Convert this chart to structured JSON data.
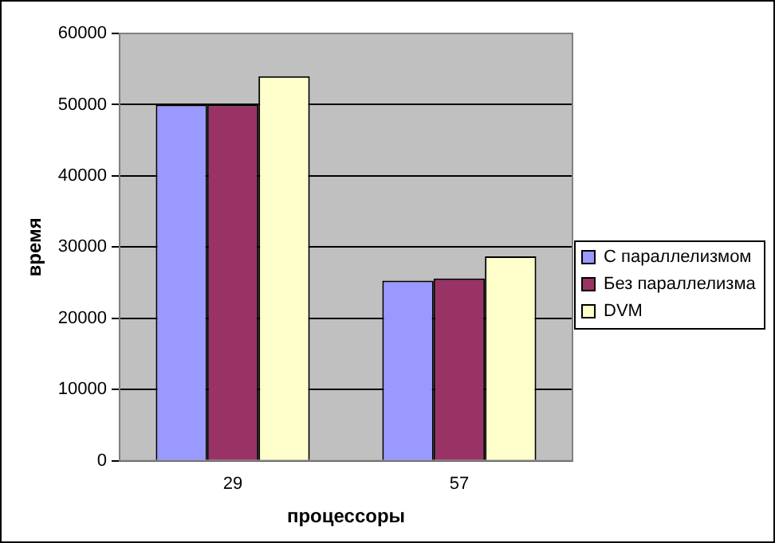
{
  "chart_data": {
    "type": "bar",
    "xlabel": "процессоры",
    "ylabel": "время",
    "categories": [
      "29",
      "57"
    ],
    "series": [
      {
        "name": "С параллелизмом",
        "color": "#9999ff",
        "values": [
          50000,
          25300
        ]
      },
      {
        "name": "Без параллелизма",
        "color": "#993366",
        "values": [
          50000,
          25600
        ]
      },
      {
        "name": "DVM",
        "color": "#ffffcc",
        "values": [
          54000,
          28700
        ]
      }
    ],
    "ylim": [
      0,
      60000
    ],
    "yticks": [
      0,
      10000,
      20000,
      30000,
      40000,
      50000,
      60000
    ],
    "grid": "y",
    "legend": "right"
  }
}
